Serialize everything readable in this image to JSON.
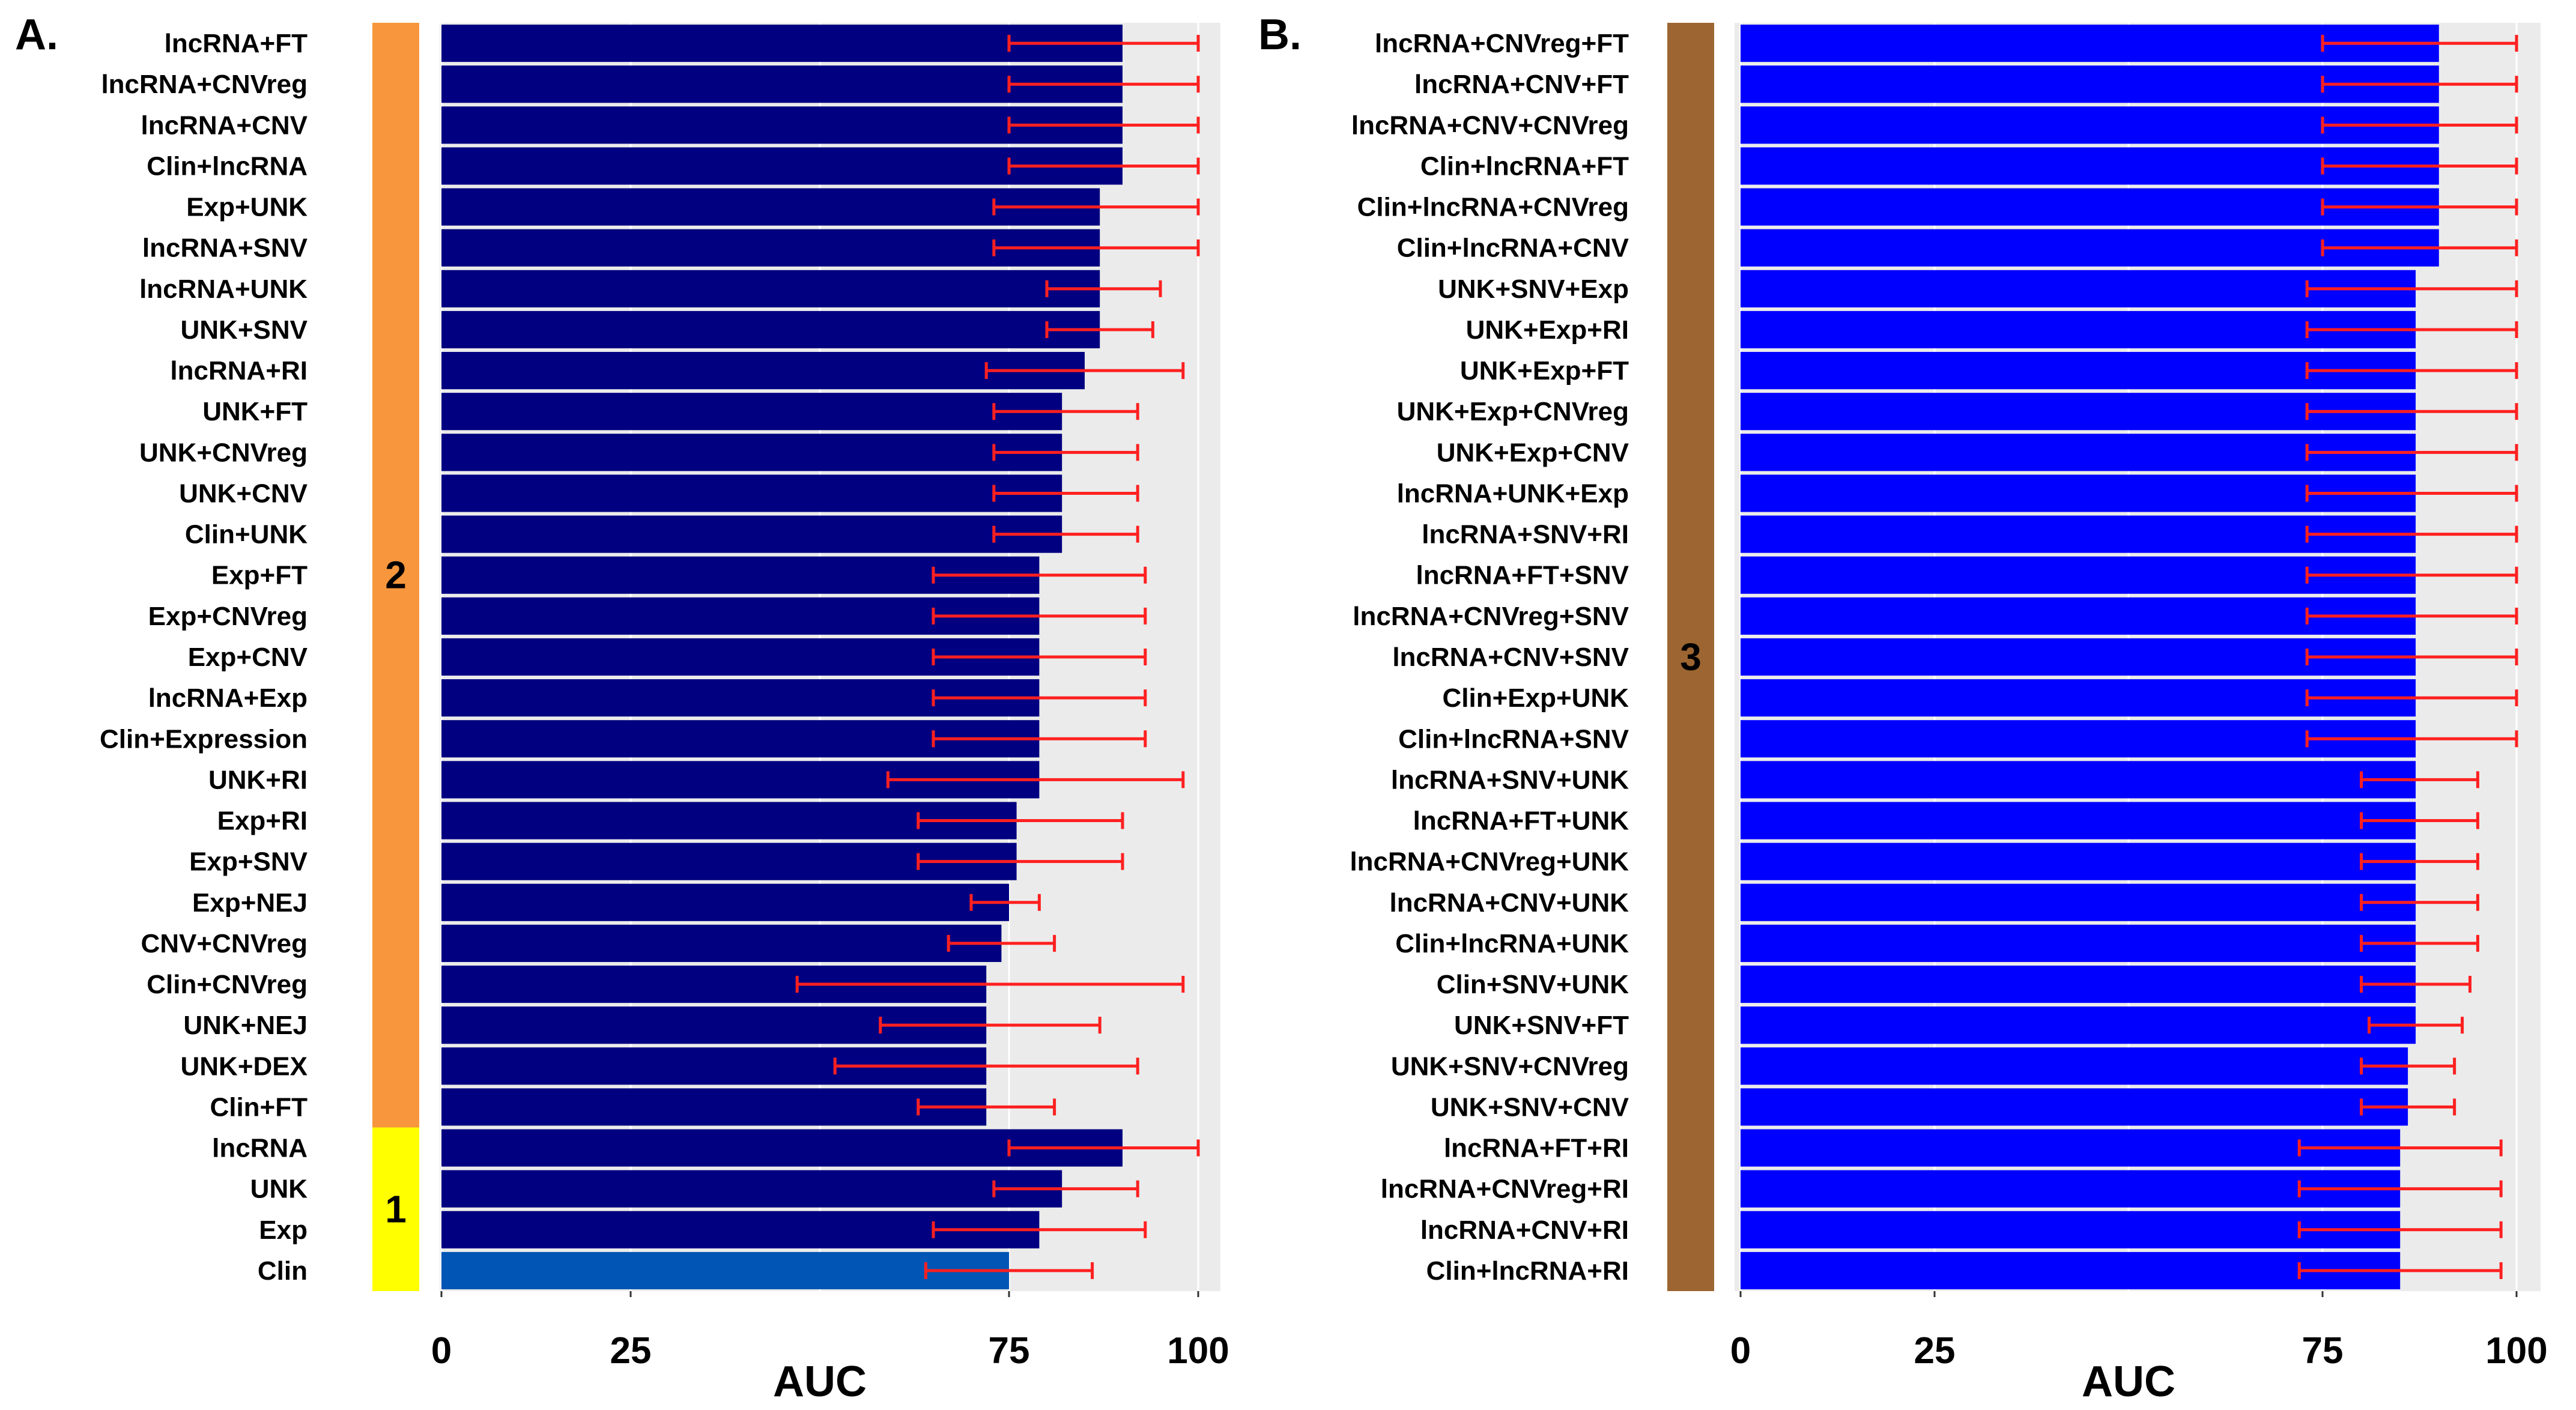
{
  "chart_data": [
    {
      "panel": "A.",
      "type": "bar",
      "orientation": "horizontal",
      "xlabel": "AUC",
      "xlim": [
        0,
        100
      ],
      "xticks": [
        "0",
        "25",
        "75",
        "100"
      ],
      "categories": [
        "lncRNA+FT",
        "lncRNA+CNVreg",
        "lncRNA+CNV",
        "Clin+lncRNA",
        "Exp+UNK",
        "lncRNA+SNV",
        "lncRNA+UNK",
        "UNK+SNV",
        "lncRNA+RI",
        "UNK+FT",
        "UNK+CNVreg",
        "UNK+CNV",
        "Clin+UNK",
        "Exp+FT",
        "Exp+CNVreg",
        "Exp+CNV",
        "lncRNA+Exp",
        "Clin+Expression",
        "UNK+RI",
        "Exp+RI",
        "Exp+SNV",
        "Exp+NEJ",
        "CNV+CNVreg",
        "Clin+CNVreg",
        "UNK+NEJ",
        "UNK+DEX",
        "Clin+FT",
        "lncRNA",
        "UNK",
        "Exp",
        "Clin"
      ],
      "values": [
        90,
        90,
        90,
        90,
        87,
        87,
        87,
        87,
        85,
        82,
        82,
        82,
        82,
        79,
        79,
        79,
        79,
        79,
        79,
        76,
        76,
        75,
        74,
        72,
        72,
        72,
        72,
        90,
        82,
        79,
        75
      ],
      "error_low": [
        75,
        75,
        75,
        75,
        73,
        73,
        80,
        80,
        72,
        73,
        73,
        73,
        73,
        65,
        65,
        65,
        65,
        65,
        59,
        63,
        63,
        70,
        67,
        47,
        58,
        52,
        63,
        75,
        73,
        65,
        64
      ],
      "error_high": [
        100,
        100,
        100,
        100,
        100,
        100,
        95,
        94,
        98,
        92,
        92,
        92,
        92,
        93,
        93,
        93,
        93,
        93,
        98,
        90,
        90,
        79,
        81,
        98,
        87,
        92,
        81,
        100,
        92,
        93,
        86
      ],
      "bar_colors": [
        "#000080",
        "#000080",
        "#000080",
        "#000080",
        "#000080",
        "#000080",
        "#000080",
        "#000080",
        "#000080",
        "#000080",
        "#000080",
        "#000080",
        "#000080",
        "#000080",
        "#000080",
        "#000080",
        "#000080",
        "#000080",
        "#000080",
        "#000080",
        "#000080",
        "#000080",
        "#000080",
        "#000080",
        "#000080",
        "#000080",
        "#000080",
        "#000080",
        "#000080",
        "#000080",
        "#0055b5"
      ],
      "error_color": "#ff2020",
      "groups": [
        {
          "label": "2",
          "color": "#f7963c",
          "from": 0,
          "to": 26
        },
        {
          "label": "1",
          "color": "#ffff00",
          "from": 27,
          "to": 30
        }
      ]
    },
    {
      "panel": "B.",
      "type": "bar",
      "orientation": "horizontal",
      "xlabel": "AUC",
      "xlim": [
        0,
        100
      ],
      "xticks": [
        "0",
        "25",
        "75",
        "100"
      ],
      "categories": [
        "lncRNA+CNVreg+FT",
        "lncRNA+CNV+FT",
        "lncRNA+CNV+CNVreg",
        "Clin+lncRNA+FT",
        "Clin+lncRNA+CNVreg",
        "Clin+lncRNA+CNV",
        "UNK+SNV+Exp",
        "UNK+Exp+RI",
        "UNK+Exp+FT",
        "UNK+Exp+CNVreg",
        "UNK+Exp+CNV",
        "lncRNA+UNK+Exp",
        "lncRNA+SNV+RI",
        "lncRNA+FT+SNV",
        "lncRNA+CNVreg+SNV",
        "lncRNA+CNV+SNV",
        "Clin+Exp+UNK",
        "Clin+lncRNA+SNV",
        "lncRNA+SNV+UNK",
        "lncRNA+FT+UNK",
        "lncRNA+CNVreg+UNK",
        "lncRNA+CNV+UNK",
        "Clin+lncRNA+UNK",
        "Clin+SNV+UNK",
        "UNK+SNV+FT",
        "UNK+SNV+CNVreg",
        "UNK+SNV+CNV",
        "lncRNA+FT+RI",
        "lncRNA+CNVreg+RI",
        "lncRNA+CNV+RI",
        "Clin+lncRNA+RI"
      ],
      "values": [
        90,
        90,
        90,
        90,
        90,
        90,
        87,
        87,
        87,
        87,
        87,
        87,
        87,
        87,
        87,
        87,
        87,
        87,
        87,
        87,
        87,
        87,
        87,
        87,
        87,
        86,
        86,
        85,
        85,
        85,
        85
      ],
      "error_low": [
        75,
        75,
        75,
        75,
        75,
        75,
        73,
        73,
        73,
        73,
        73,
        73,
        73,
        73,
        73,
        73,
        73,
        73,
        80,
        80,
        80,
        80,
        80,
        80,
        81,
        80,
        80,
        72,
        72,
        72,
        72
      ],
      "error_high": [
        100,
        100,
        100,
        100,
        100,
        100,
        100,
        100,
        100,
        100,
        100,
        100,
        100,
        100,
        100,
        100,
        100,
        100,
        95,
        95,
        95,
        95,
        95,
        94,
        93,
        92,
        92,
        98,
        98,
        98,
        98
      ],
      "bar_colors": [
        "#0000ff"
      ],
      "error_color": "#ff2020",
      "groups": [
        {
          "label": "3",
          "color": "#9c6531",
          "from": 0,
          "to": 30
        }
      ]
    }
  ]
}
